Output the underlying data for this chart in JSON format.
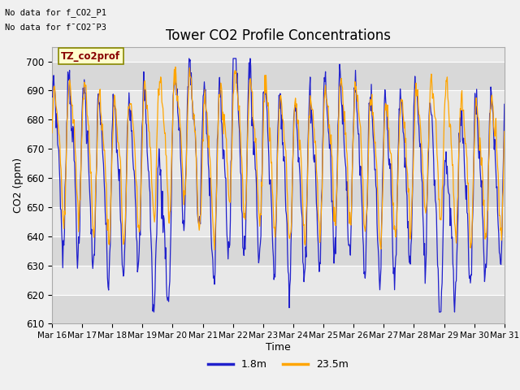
{
  "title": "Tower CO2 Profile Concentrations",
  "xlabel": "Time",
  "ylabel": "CO2 (ppm)",
  "annotation1": "No data for f_CO2_P1",
  "annotation2": "No data for f¯CO2¯P3",
  "box_label": "TZ_co2prof",
  "ylim": [
    610,
    705
  ],
  "yticks": [
    610,
    620,
    630,
    640,
    650,
    660,
    670,
    680,
    690,
    700
  ],
  "x_labels": [
    "Mar 16",
    "Mar 17",
    "Mar 18",
    "Mar 19",
    "Mar 20",
    "Mar 21",
    "Mar 22",
    "Mar 23",
    "Mar 24",
    "Mar 25",
    "Mar 26",
    "Mar 27",
    "Mar 28",
    "Mar 29",
    "Mar 30",
    "Mar 31"
  ],
  "color_blue": "#2020cc",
  "color_orange": "#FFA500",
  "legend_labels": [
    "1.8m",
    "23.5m"
  ],
  "box_facecolor": "#ffffcc",
  "box_edgecolor": "#888800",
  "box_textcolor": "#880000",
  "band_light": "#e8e8e8",
  "band_dark": "#d8d8d8",
  "fig_facecolor": "#f0f0f0"
}
